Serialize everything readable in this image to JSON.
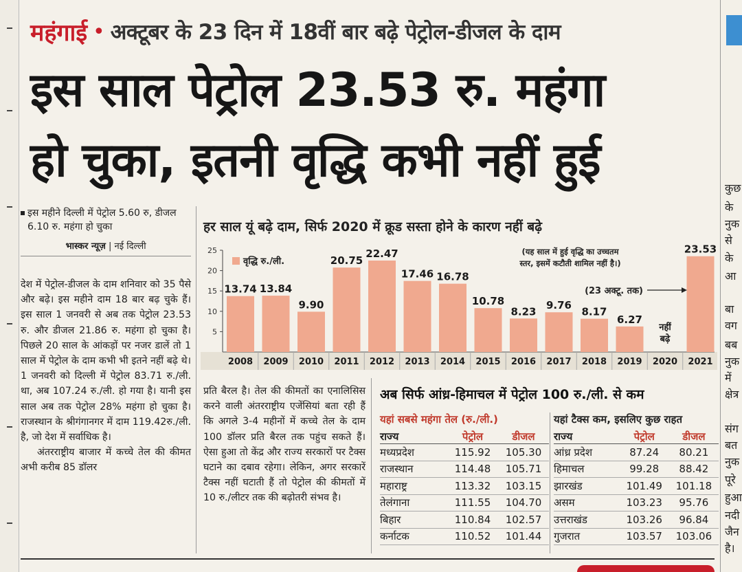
{
  "kicker": {
    "label": "महंगाई",
    "bullet": "•",
    "subhead": "अक्टूबर के 23 दिन में 18वीं बार बढ़े पेट्रोल-डीजल के दाम"
  },
  "headline": {
    "line1": "इस साल पेट्रोल 23.53 रु. महंगा",
    "line2": "हो चुका, इतनी वृद्धि कभी नहीं हुई"
  },
  "summary_bullet": "इस महीने दिल्ली में पेट्रोल 5.60 रु, डीजल 6.10 रु. महंगा हो चुका",
  "byline": {
    "agency": "भास्कर न्यूज़",
    "sep": " | ",
    "city": "नई दिल्ली"
  },
  "body_col1": "देश में पेट्रोल-डीजल के दाम शनिवार को 35 पैसे और बढ़े। इस महीने दाम 18 बार बढ़ चुके हैं। इस साल 1 जनवरी से अब तक पेट्रोल 23.53 रु. और डीजल 21.86 रु. महंगा हो चुका है। पिछले 20 साल के आंकड़ों पर नजर डालें तो 1 साल में पेट्रोल के दाम कभी भी इतने नहीं बढ़े थे। 1 जनवरी को दिल्ली में पेट्रोल 83.71 रु./ली. था, अब 107.24 रु./ली. हो गया है। यानी इस साल अब तक पेट्रोल 28% महंगा हो चुका है। राजस्थान के श्रीगंगानगर में दाम 119.42रु./ली. है, जो देश में सर्वाधिक है।",
  "body_col1_p2": "अंतरराष्ट्रीय बाजार में कच्चे तेल की कीमत अभी करीब 85 डॉलर",
  "body_col2": "प्रति बैरल है। तेल की कीमतों का एनालिसिस करने वाली अंतरराष्ट्रीय एजेंसियां बता रही हैं कि अगले 3-4 महीनों में कच्चे तेल के दाम 100 डॉलर प्रति बैरल तक पहुंच सकते हैं। ऐसा हुआ तो केंद्र और राज्य सरकारों पर टैक्स घटाने का दबाव रहेगा। लेकिन, अगर सरकारें टैक्स नहीं घटाती हैं तो पेट्रोल की कीमतों में 10 रु./लीटर तक की बढ़ोतरी संभव है।",
  "chart_data": {
    "type": "bar",
    "title": "हर साल यूं बढ़े दाम, सिर्फ 2020 में क्रूड सस्ता होने के कारण नहीं बढ़े",
    "legend": "वृद्धि रु./ली.",
    "categories": [
      "2008",
      "2009",
      "2010",
      "2011",
      "2012",
      "2013",
      "2014",
      "2015",
      "2016",
      "2017",
      "2018",
      "2019",
      "2020",
      "2021"
    ],
    "values": [
      13.74,
      13.84,
      9.9,
      20.75,
      22.47,
      17.46,
      16.78,
      10.78,
      8.23,
      9.76,
      8.17,
      6.27,
      null,
      23.53
    ],
    "value_labels": [
      "13.74",
      "13.84",
      "9.90",
      "20.75",
      "22.47",
      "17.46",
      "16.78",
      "10.78",
      "8.23",
      "9.76",
      "8.17",
      "6.27",
      "",
      "23.53"
    ],
    "no_increase_label": [
      "नहीं",
      "बढ़े"
    ],
    "y_ticks": [
      5,
      10,
      15,
      20,
      25
    ],
    "ylim": [
      0,
      25
    ],
    "note": "(यह साल में हुई वृद्धि का उच्चतम स्तर, इसमें कटौती शामिल नहीं है।)",
    "callout": "(23 अक्टू. तक)",
    "bar_color": "#f0a98f"
  },
  "tables": {
    "heading": "अब सिर्फ आंध्र-हिमाचल में पेट्रोल 100 रु./ली. से कम",
    "costly": {
      "caption": "यहां सबसे महंगा तेल (रु./ली.)",
      "headers": [
        "राज्य",
        "पेट्रोल",
        "डीजल"
      ],
      "rows": [
        [
          "मध्यप्रदेश",
          "115.92",
          "105.30"
        ],
        [
          "राजस्थान",
          "114.48",
          "105.71"
        ],
        [
          "महाराष्ट्र",
          "113.32",
          "103.15"
        ],
        [
          "तेलंगाना",
          "111.55",
          "104.70"
        ],
        [
          "बिहार",
          "110.84",
          "102.57"
        ],
        [
          "कर्नाटक",
          "110.52",
          "101.44"
        ]
      ]
    },
    "cheap": {
      "caption": "यहां टैक्स कम, इसलिए कुछ राहत",
      "headers": [
        "राज्य",
        "पेट्रोल",
        "डीजल"
      ],
      "rows": [
        [
          "आंध्र प्रदेश",
          "87.24",
          "80.21"
        ],
        [
          "हिमाचल",
          "99.28",
          "88.42"
        ],
        [
          "झारखंड",
          "101.49",
          "101.18"
        ],
        [
          "असम",
          "103.23",
          "95.76"
        ],
        [
          "उत्तराखंड",
          "103.26",
          "96.84"
        ],
        [
          "गुजरात",
          "103.57",
          "103.06"
        ]
      ]
    }
  },
  "right_fragments": [
    "कुछ",
    "के",
    "नुक",
    "से",
    "के",
    "आ",
    "बा",
    "वग",
    "बब",
    "नुक",
    "में",
    "क्षेत्र",
    "संग",
    "बत",
    "नुक",
    "पूरे",
    "हुआ",
    "नदी",
    "जैन",
    "है।"
  ]
}
